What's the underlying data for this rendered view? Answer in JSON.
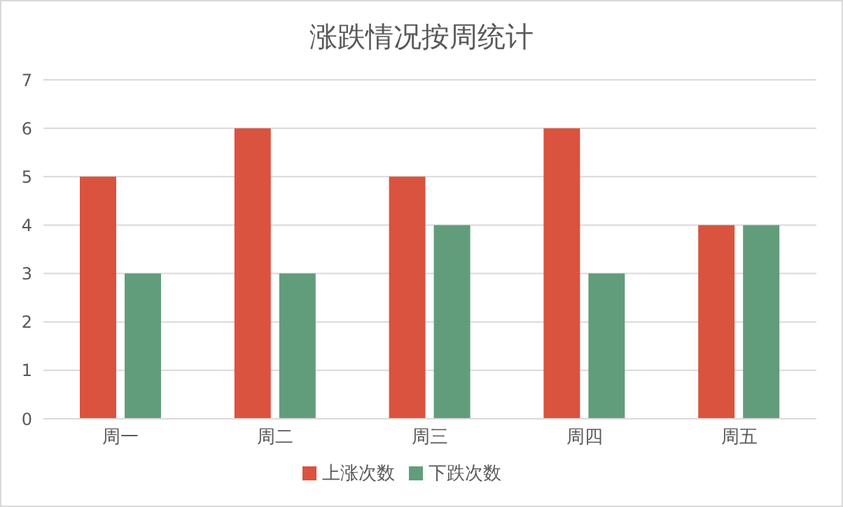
{
  "chart_data": {
    "type": "bar",
    "title": "涨跌情况按周统计",
    "categories": [
      "周一",
      "周二",
      "周三",
      "周四",
      "周五"
    ],
    "series": [
      {
        "name": "上涨次数",
        "color": "#d9533f",
        "values": [
          5,
          6,
          5,
          6,
          4
        ]
      },
      {
        "name": "下跌次数",
        "color": "#629d7b",
        "values": [
          3,
          3,
          4,
          3,
          4
        ]
      }
    ],
    "ylim": [
      0,
      7
    ],
    "yticks": [
      0,
      1,
      2,
      3,
      4,
      5,
      6,
      7
    ],
    "grid": "y",
    "legend": "bottom"
  }
}
